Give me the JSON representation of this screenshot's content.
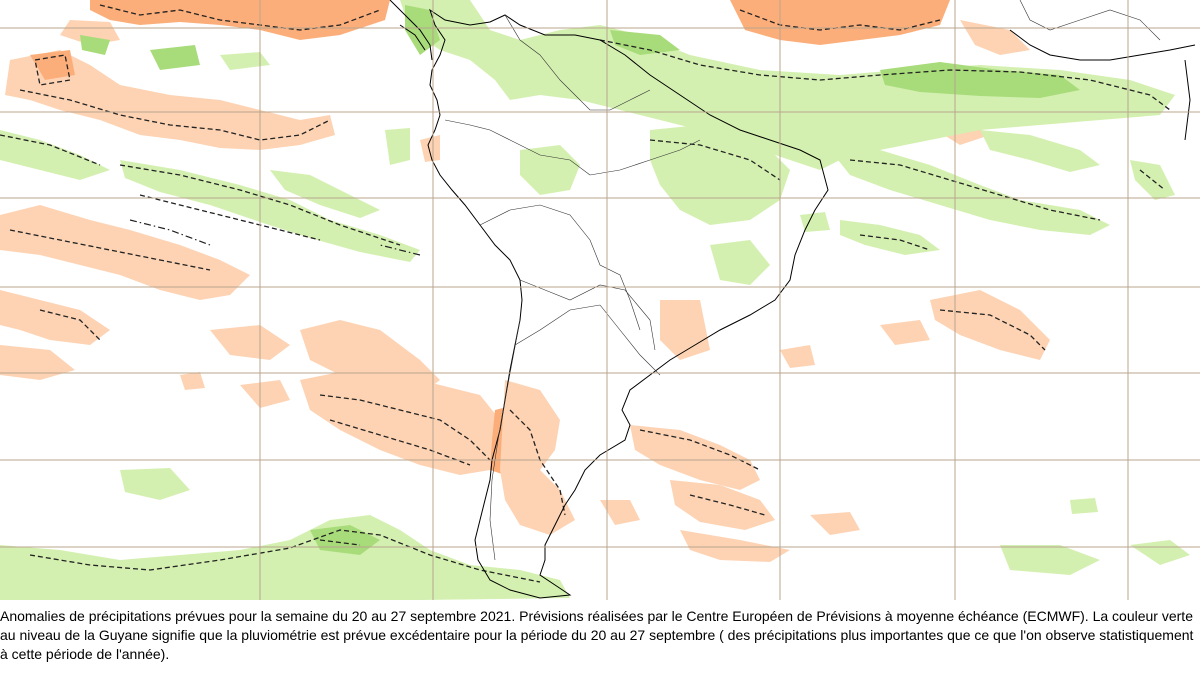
{
  "caption": "Anomalies de précipitations prévues pour la semaine du 20 au  27 septembre 2021. Prévisions réalisées par le Centre Européen de Prévisions  à moyenne échéance (ECMWF). La couleur verte au niveau de la Guyane signifie que la pluviométrie est prévue excédentaire pour la période  du 20  au 27 septembre ( des précipitations plus importantes que ce que  l'on observe statistiquement  à  cette période de l'année).",
  "colors": {
    "wet_light": "#d4f0b0",
    "wet_medium": "#a8dc7a",
    "dry_light": "#fdd3b3",
    "dry_medium": "#fbae7a",
    "grid": "#b9a58e"
  }
}
